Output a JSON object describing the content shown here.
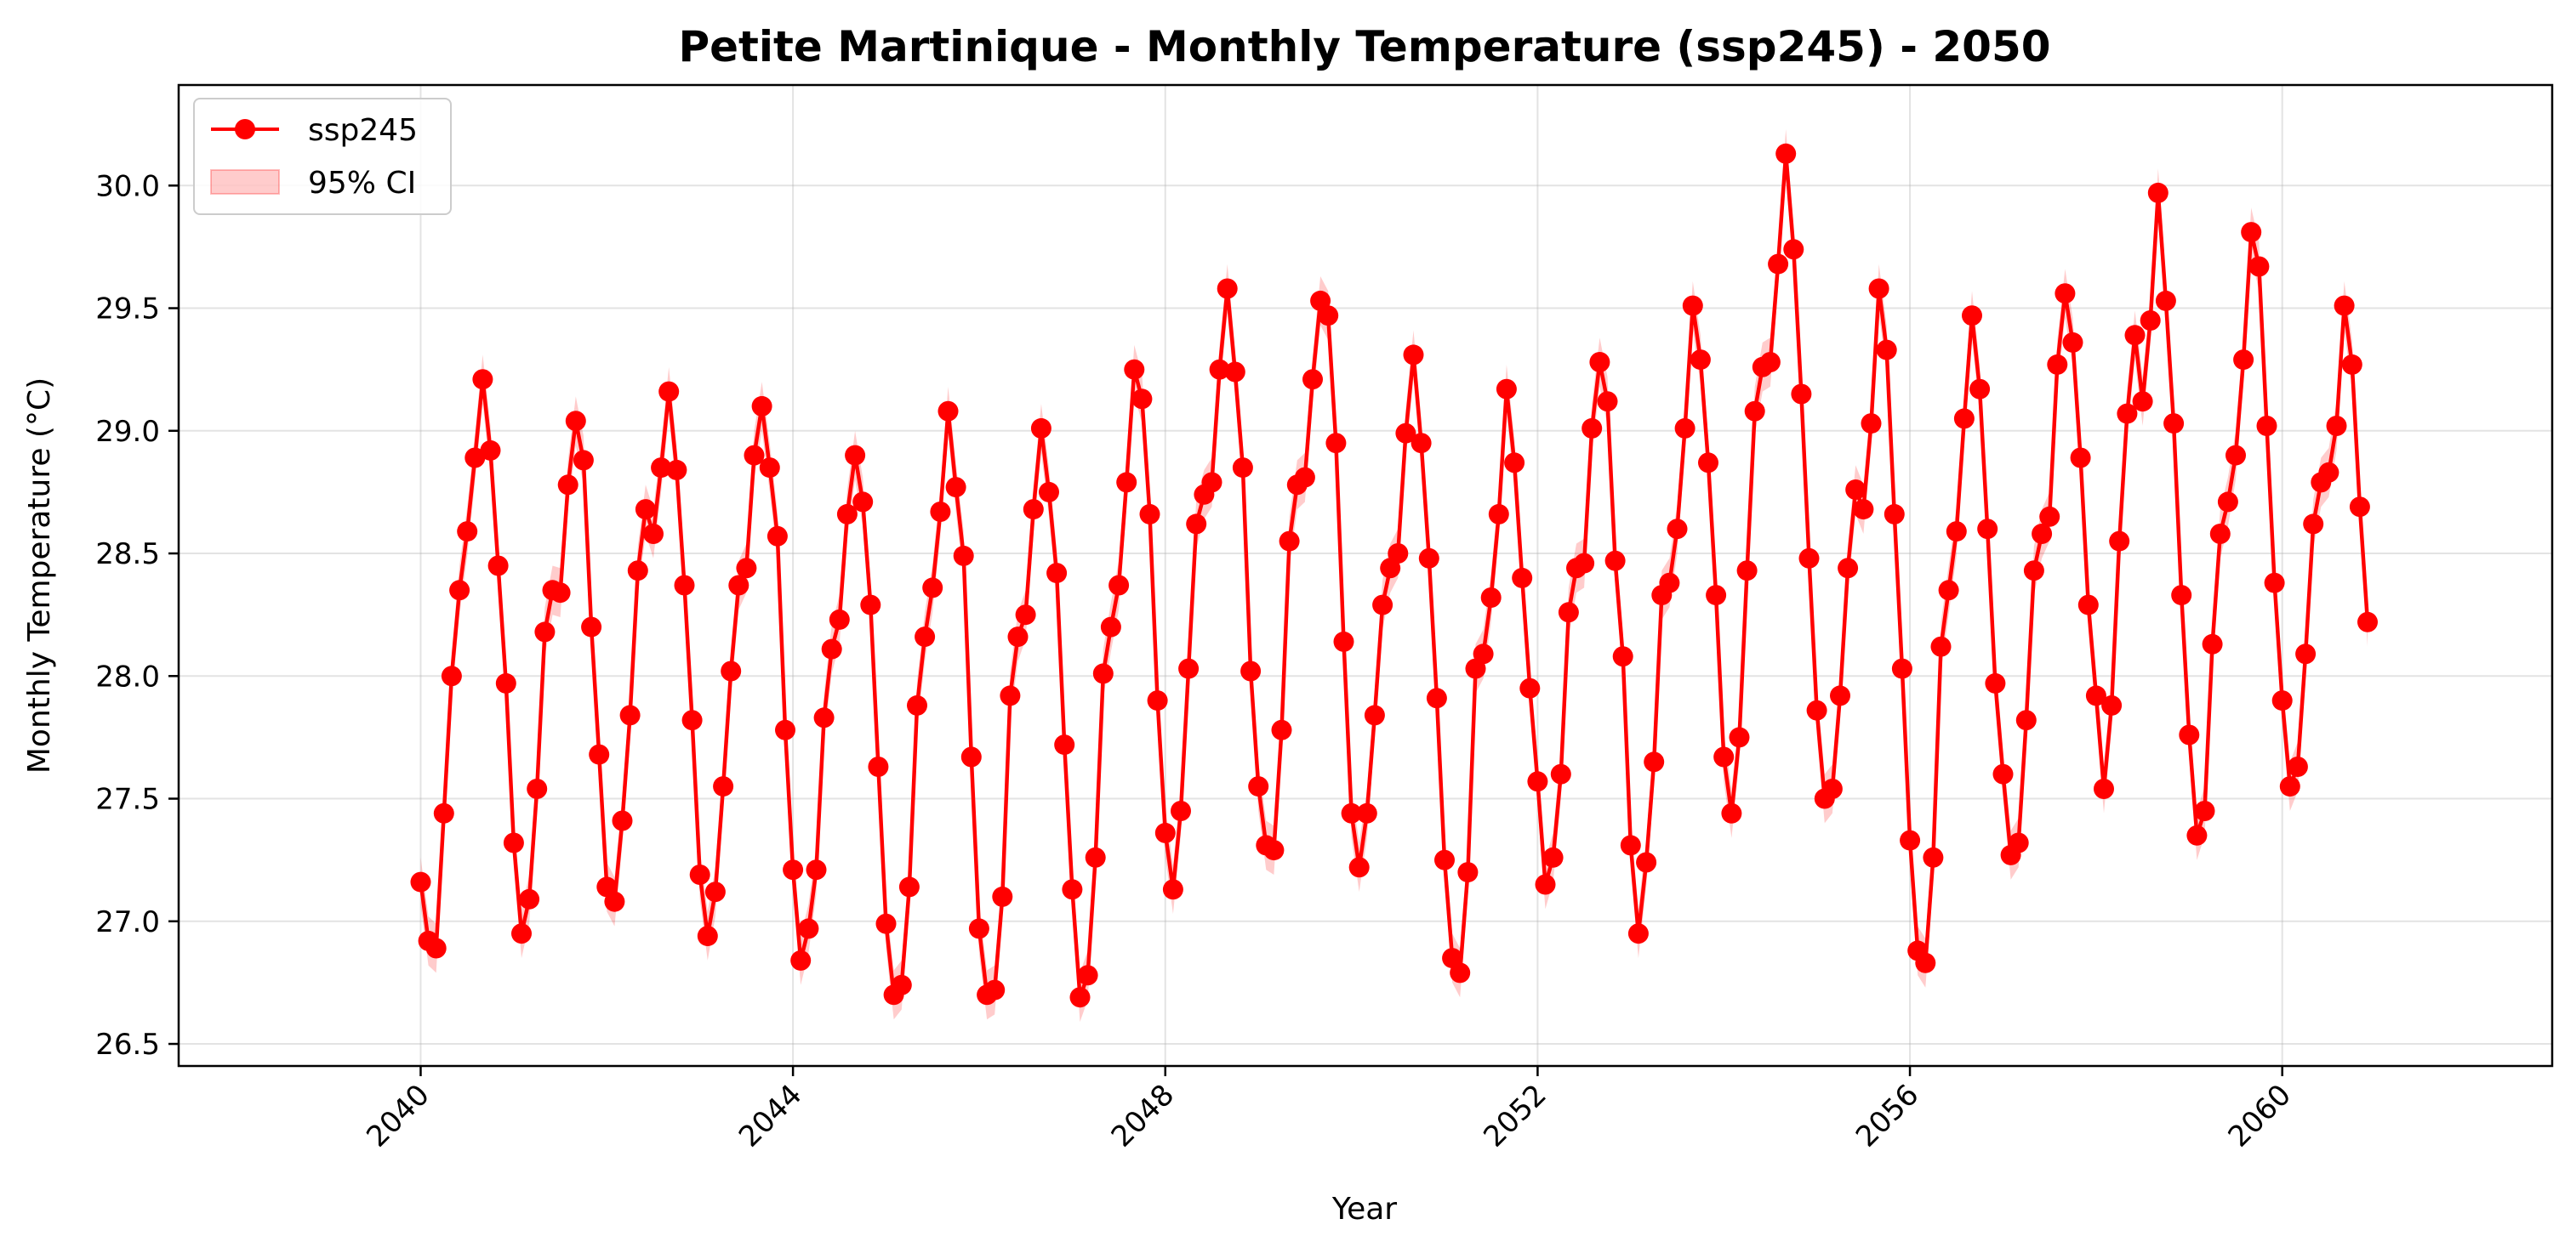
{
  "chart_data": {
    "type": "line",
    "title": "Petite Martinique - Monthly Temperature (ssp245) - 2050",
    "xlabel": "Year",
    "ylabel": "Monthly Temperature (°C)",
    "xlim": [
      2037.4,
      2062.9
    ],
    "ylim": [
      26.41,
      30.41
    ],
    "x_ticks": [
      2040,
      2044,
      2048,
      2052,
      2056,
      2060
    ],
    "x_tick_labels": [
      "2040",
      "2044",
      "2048",
      "2052",
      "2056",
      "2060"
    ],
    "y_ticks": [
      26.5,
      27.0,
      27.5,
      28.0,
      28.5,
      29.0,
      29.5,
      30.0
    ],
    "y_tick_labels": [
      "26.5",
      "27.0",
      "27.5",
      "28.0",
      "28.5",
      "29.0",
      "29.5",
      "30.0"
    ],
    "grid": true,
    "legend_position": "top-left",
    "x_start": 2040,
    "x_step_months": 1,
    "ci_halfwidth": 0.1,
    "series": [
      {
        "name": "ssp245",
        "color": "#ff0000",
        "marker": "circle",
        "values": [
          27.16,
          26.92,
          26.89,
          27.44,
          28.0,
          28.35,
          28.59,
          28.89,
          29.21,
          28.92,
          28.45,
          27.97,
          27.32,
          26.95,
          27.09,
          27.54,
          28.18,
          28.35,
          28.34,
          28.78,
          29.04,
          28.88,
          28.2,
          27.68,
          27.14,
          27.08,
          27.41,
          27.84,
          28.43,
          28.68,
          28.58,
          28.85,
          29.16,
          28.84,
          28.37,
          27.82,
          27.19,
          26.94,
          27.12,
          27.55,
          28.02,
          28.37,
          28.44,
          28.9,
          29.1,
          28.85,
          28.57,
          27.78,
          27.21,
          26.84,
          26.97,
          27.21,
          27.83,
          28.11,
          28.23,
          28.66,
          28.9,
          28.71,
          28.29,
          27.63,
          26.99,
          26.7,
          26.74,
          27.14,
          27.88,
          28.16,
          28.36,
          28.67,
          29.08,
          28.77,
          28.49,
          27.67,
          26.97,
          26.7,
          26.72,
          27.1,
          27.92,
          28.16,
          28.25,
          28.68,
          29.01,
          28.75,
          28.42,
          27.72,
          27.13,
          26.69,
          26.78,
          27.26,
          28.01,
          28.2,
          28.37,
          28.79,
          29.25,
          29.13,
          28.66,
          27.9,
          27.36,
          27.13,
          27.45,
          28.03,
          28.62,
          28.74,
          28.79,
          29.25,
          29.58,
          29.24,
          28.85,
          28.02,
          27.55,
          27.31,
          27.29,
          27.78,
          28.55,
          28.78,
          28.81,
          29.21,
          29.53,
          29.47,
          28.95,
          28.14,
          27.44,
          27.22,
          27.44,
          27.84,
          28.29,
          28.44,
          28.5,
          28.99,
          29.31,
          28.95,
          28.48,
          27.91,
          27.25,
          26.85,
          26.79,
          27.2,
          28.03,
          28.09,
          28.32,
          28.66,
          29.17,
          28.87,
          28.4,
          27.95,
          27.57,
          27.15,
          27.26,
          27.6,
          28.26,
          28.44,
          28.46,
          29.01,
          29.28,
          29.12,
          28.47,
          28.08,
          27.31,
          26.95,
          27.24,
          27.65,
          28.33,
          28.38,
          28.6,
          29.01,
          29.51,
          29.29,
          28.87,
          28.33,
          27.67,
          27.44,
          27.75,
          28.43,
          29.08,
          29.26,
          29.28,
          29.68,
          30.13,
          29.74,
          29.15,
          28.48,
          27.86,
          27.5,
          27.54,
          27.92,
          28.44,
          28.76,
          28.68,
          29.03,
          29.58,
          29.33,
          28.66,
          28.03,
          27.33,
          26.88,
          26.83,
          27.26,
          28.12,
          28.35,
          28.59,
          29.05,
          29.47,
          29.17,
          28.6,
          27.97,
          27.6,
          27.27,
          27.32,
          27.82,
          28.43,
          28.58,
          28.65,
          29.27,
          29.56,
          29.36,
          28.89,
          28.29,
          27.92,
          27.54,
          27.88,
          28.55,
          29.07,
          29.39,
          29.12,
          29.45,
          29.97,
          29.53,
          29.03,
          28.33,
          27.76,
          27.35,
          27.45,
          28.13,
          28.58,
          28.71,
          28.9,
          29.29,
          29.81,
          29.67,
          29.02,
          28.38,
          27.9,
          27.55,
          27.63,
          28.09,
          28.62,
          28.79,
          28.83,
          29.02,
          29.51,
          29.27,
          28.69,
          28.22
        ]
      },
      {
        "name": "95% CI",
        "color": "#ff9999",
        "type": "band"
      }
    ]
  }
}
